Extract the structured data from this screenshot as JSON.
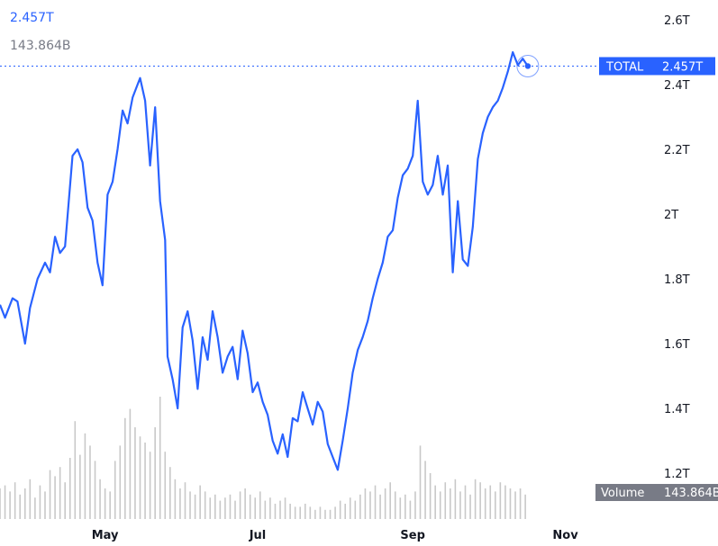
{
  "header": {
    "price": "2.457T",
    "volume": "143.864B"
  },
  "price_badge": {
    "label": "TOTAL",
    "value": "2.457T"
  },
  "volume_badge": {
    "label": "Volume",
    "value": "143.864B"
  },
  "colors": {
    "line": "#2962ff",
    "volume": "#c8c8c8",
    "axis_text": "#131722",
    "badge_bg": "#2962ff",
    "volume_badge_bg": "#787b86"
  },
  "chart_data": {
    "type": "line",
    "x_unit": "day index from Mar 20 (x-axis labels mark month starts)",
    "xlim": [
      0,
      224
    ],
    "ylim": [
      1.17,
      2.62
    ],
    "y_ticks": [
      1.2,
      1.4,
      1.6,
      1.8,
      2.0,
      2.2,
      2.4,
      2.6
    ],
    "y_tick_labels": [
      "1.2T",
      "1.4T",
      "1.6T",
      "1.8T",
      "2T",
      "2.2T",
      "2.4T",
      "2.6T"
    ],
    "x_ticks": [
      42,
      103,
      165,
      226
    ],
    "x_tick_labels": [
      "May",
      "Jul",
      "Sep",
      "Nov"
    ],
    "last_value": 2.457,
    "series": [
      {
        "points": [
          [
            0,
            1.72
          ],
          [
            2,
            1.68
          ],
          [
            5,
            1.74
          ],
          [
            7,
            1.73
          ],
          [
            10,
            1.6
          ],
          [
            12,
            1.71
          ],
          [
            15,
            1.8
          ],
          [
            18,
            1.85
          ],
          [
            20,
            1.82
          ],
          [
            22,
            1.93
          ],
          [
            24,
            1.88
          ],
          [
            26,
            1.9
          ],
          [
            29,
            2.18
          ],
          [
            31,
            2.2
          ],
          [
            33,
            2.16
          ],
          [
            35,
            2.02
          ],
          [
            37,
            1.98
          ],
          [
            39,
            1.85
          ],
          [
            41,
            1.78
          ],
          [
            43,
            2.06
          ],
          [
            45,
            2.1
          ],
          [
            47,
            2.2
          ],
          [
            49,
            2.32
          ],
          [
            51,
            2.28
          ],
          [
            53,
            2.36
          ],
          [
            55,
            2.4
          ],
          [
            56,
            2.42
          ],
          [
            58,
            2.35
          ],
          [
            60,
            2.15
          ],
          [
            62,
            2.33
          ],
          [
            64,
            2.04
          ],
          [
            66,
            1.92
          ],
          [
            67,
            1.56
          ],
          [
            69,
            1.49
          ],
          [
            71,
            1.4
          ],
          [
            73,
            1.65
          ],
          [
            75,
            1.7
          ],
          [
            77,
            1.61
          ],
          [
            79,
            1.46
          ],
          [
            81,
            1.62
          ],
          [
            83,
            1.55
          ],
          [
            85,
            1.7
          ],
          [
            87,
            1.62
          ],
          [
            89,
            1.51
          ],
          [
            91,
            1.56
          ],
          [
            93,
            1.59
          ],
          [
            95,
            1.49
          ],
          [
            97,
            1.64
          ],
          [
            99,
            1.57
          ],
          [
            101,
            1.45
          ],
          [
            103,
            1.48
          ],
          [
            105,
            1.42
          ],
          [
            107,
            1.38
          ],
          [
            109,
            1.3
          ],
          [
            111,
            1.26
          ],
          [
            113,
            1.32
          ],
          [
            115,
            1.25
          ],
          [
            117,
            1.37
          ],
          [
            119,
            1.36
          ],
          [
            121,
            1.45
          ],
          [
            123,
            1.4
          ],
          [
            125,
            1.35
          ],
          [
            127,
            1.42
          ],
          [
            129,
            1.39
          ],
          [
            131,
            1.29
          ],
          [
            133,
            1.25
          ],
          [
            135,
            1.21
          ],
          [
            137,
            1.3
          ],
          [
            139,
            1.4
          ],
          [
            141,
            1.51
          ],
          [
            143,
            1.58
          ],
          [
            145,
            1.62
          ],
          [
            147,
            1.67
          ],
          [
            149,
            1.74
          ],
          [
            151,
            1.8
          ],
          [
            153,
            1.85
          ],
          [
            155,
            1.93
          ],
          [
            157,
            1.95
          ],
          [
            159,
            2.05
          ],
          [
            161,
            2.12
          ],
          [
            163,
            2.14
          ],
          [
            165,
            2.18
          ],
          [
            167,
            2.35
          ],
          [
            169,
            2.1
          ],
          [
            171,
            2.06
          ],
          [
            173,
            2.09
          ],
          [
            175,
            2.18
          ],
          [
            177,
            2.06
          ],
          [
            179,
            2.15
          ],
          [
            181,
            1.82
          ],
          [
            183,
            2.04
          ],
          [
            185,
            1.86
          ],
          [
            187,
            1.84
          ],
          [
            189,
            1.96
          ],
          [
            191,
            2.17
          ],
          [
            193,
            2.25
          ],
          [
            195,
            2.3
          ],
          [
            197,
            2.33
          ],
          [
            199,
            2.35
          ],
          [
            201,
            2.39
          ],
          [
            203,
            2.44
          ],
          [
            205,
            2.5
          ],
          [
            207,
            2.46
          ],
          [
            209,
            2.48
          ],
          [
            211,
            2.457
          ]
        ]
      }
    ],
    "volume_bars": [
      [
        0,
        1.0
      ],
      [
        2,
        1.1
      ],
      [
        4,
        0.9
      ],
      [
        6,
        1.2
      ],
      [
        8,
        0.8
      ],
      [
        10,
        1.0
      ],
      [
        12,
        1.3
      ],
      [
        14,
        0.7
      ],
      [
        16,
        1.1
      ],
      [
        18,
        0.9
      ],
      [
        20,
        1.6
      ],
      [
        22,
        1.4
      ],
      [
        24,
        1.7
      ],
      [
        26,
        1.2
      ],
      [
        28,
        2.0
      ],
      [
        30,
        3.2
      ],
      [
        32,
        2.1
      ],
      [
        34,
        2.8
      ],
      [
        36,
        2.4
      ],
      [
        38,
        1.9
      ],
      [
        40,
        1.3
      ],
      [
        42,
        1.0
      ],
      [
        44,
        0.9
      ],
      [
        46,
        1.9
      ],
      [
        48,
        2.4
      ],
      [
        50,
        3.3
      ],
      [
        52,
        3.6
      ],
      [
        54,
        3.0
      ],
      [
        56,
        2.7
      ],
      [
        58,
        2.5
      ],
      [
        60,
        2.2
      ],
      [
        62,
        3.0
      ],
      [
        64,
        4.0
      ],
      [
        66,
        2.2
      ],
      [
        68,
        1.7
      ],
      [
        70,
        1.3
      ],
      [
        72,
        1.0
      ],
      [
        74,
        1.2
      ],
      [
        76,
        0.9
      ],
      [
        78,
        0.8
      ],
      [
        80,
        1.1
      ],
      [
        82,
        0.9
      ],
      [
        84,
        0.7
      ],
      [
        86,
        0.8
      ],
      [
        88,
        0.6
      ],
      [
        90,
        0.7
      ],
      [
        92,
        0.8
      ],
      [
        94,
        0.6
      ],
      [
        96,
        0.9
      ],
      [
        98,
        1.0
      ],
      [
        100,
        0.8
      ],
      [
        102,
        0.7
      ],
      [
        104,
        0.9
      ],
      [
        106,
        0.6
      ],
      [
        108,
        0.7
      ],
      [
        110,
        0.5
      ],
      [
        112,
        0.6
      ],
      [
        114,
        0.7
      ],
      [
        116,
        0.5
      ],
      [
        118,
        0.4
      ],
      [
        120,
        0.4
      ],
      [
        122,
        0.5
      ],
      [
        124,
        0.4
      ],
      [
        126,
        0.3
      ],
      [
        128,
        0.4
      ],
      [
        130,
        0.3
      ],
      [
        132,
        0.3
      ],
      [
        134,
        0.4
      ],
      [
        136,
        0.6
      ],
      [
        138,
        0.5
      ],
      [
        140,
        0.7
      ],
      [
        142,
        0.6
      ],
      [
        144,
        0.8
      ],
      [
        146,
        1.0
      ],
      [
        148,
        0.9
      ],
      [
        150,
        1.1
      ],
      [
        152,
        0.8
      ],
      [
        154,
        1.0
      ],
      [
        156,
        1.2
      ],
      [
        158,
        0.9
      ],
      [
        160,
        0.7
      ],
      [
        162,
        0.8
      ],
      [
        164,
        0.6
      ],
      [
        166,
        0.9
      ],
      [
        168,
        2.4
      ],
      [
        170,
        1.9
      ],
      [
        172,
        1.5
      ],
      [
        174,
        1.1
      ],
      [
        176,
        0.9
      ],
      [
        178,
        1.2
      ],
      [
        180,
        1.0
      ],
      [
        182,
        1.3
      ],
      [
        184,
        0.9
      ],
      [
        186,
        1.1
      ],
      [
        188,
        0.8
      ],
      [
        190,
        1.3
      ],
      [
        192,
        1.2
      ],
      [
        194,
        1.0
      ],
      [
        196,
        1.1
      ],
      [
        198,
        0.9
      ],
      [
        200,
        1.2
      ],
      [
        202,
        1.1
      ],
      [
        204,
        1.0
      ],
      [
        206,
        0.9
      ],
      [
        208,
        1.0
      ],
      [
        210,
        0.8
      ]
    ]
  }
}
